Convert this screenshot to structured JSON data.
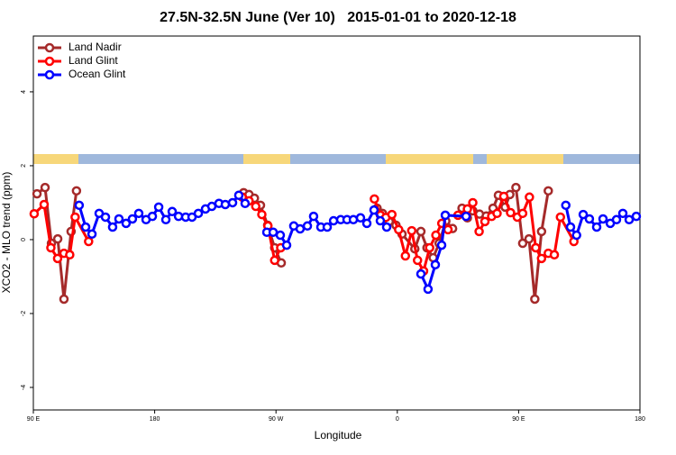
{
  "chart_data": {
    "type": "line",
    "title": "27.5N-32.5N June (Ver 10)   2015-01-01 to 2020-12-18",
    "xlabel": "Longitude",
    "ylabel": "XCO2 - MLO trend (ppm)",
    "xlim": [
      90,
      540
    ],
    "ylim": [
      -4.61,
      5.51
    ],
    "xticks": [
      {
        "value": 90,
        "label": "90 E"
      },
      180,
      {
        "value": 270,
        "label": "90 W"
      },
      {
        "value": 360,
        "label": "0"
      },
      {
        "value": 450,
        "label": "90 E"
      },
      {
        "value": 540,
        "label": "180"
      }
    ],
    "yticks": [
      -4,
      -2,
      0,
      2,
      4
    ],
    "legend": "top-left",
    "series": [
      {
        "name": "Land Nadir",
        "color": "#a52a2a",
        "x": [
          92.7,
          98.7,
          103.4,
          108.1,
          112.7,
          118,
          122,
          180,
          246,
          250,
          254,
          258.5,
          263.8,
          269,
          273.9,
          300,
          345,
          349,
          354,
          359,
          363.5,
          373,
          377.5,
          382,
          386.6,
          391,
          396,
          401,
          404,
          408,
          412,
          416,
          421,
          426,
          431,
          435,
          440,
          443.5,
          448,
          453,
          457.7,
          462,
          467,
          472
        ],
        "values": [
          1.24,
          1.41,
          -0.1,
          0.02,
          -1.61,
          0.22,
          1.32,
          null,
          1.27,
          1.22,
          1.12,
          0.93,
          0.39,
          -0.22,
          -0.63,
          null,
          0.85,
          0.71,
          0.49,
          0.39,
          0.15,
          -0.25,
          0.22,
          -0.22,
          -0.49,
          -0.1,
          0.5,
          0.3,
          null,
          0.85,
          0.59,
          0.78,
          0.69,
          0.64,
          0.85,
          1.2,
          0.88,
          1.22,
          1.41,
          -0.1,
          0.02,
          -1.61,
          0.22,
          1.32
        ]
      },
      {
        "name": "Land Glint",
        "color": "#ff0000",
        "x": [
          90.6,
          98,
          103,
          108,
          112.7,
          117,
          121,
          131,
          200,
          245,
          250,
          255,
          259.5,
          264,
          269,
          273.5,
          300,
          343,
          347.5,
          351.5,
          356,
          361,
          366,
          370.7,
          375,
          379.5,
          384,
          388.6,
          393,
          397.6,
          401,
          405,
          412,
          416,
          420.7,
          425,
          430,
          434,
          439,
          444,
          449,
          453,
          458,
          462.7,
          467,
          472,
          476.5,
          481,
          491
        ],
        "values": [
          0.7,
          0.95,
          -0.22,
          -0.51,
          -0.37,
          -0.41,
          0.61,
          -0.05,
          null,
          1.15,
          1.05,
          0.9,
          0.68,
          0.37,
          -0.56,
          -0.22,
          null,
          1.1,
          0.66,
          0.6,
          0.68,
          0.27,
          -0.44,
          0.24,
          -0.56,
          -0.85,
          -0.22,
          0.12,
          0.44,
          0.27,
          null,
          0.66,
          0.83,
          1.0,
          0.22,
          0.49,
          0.63,
          0.71,
          1.17,
          0.73,
          0.61,
          0.71,
          1.15,
          -0.22,
          -0.51,
          -0.37,
          -0.41,
          0.61,
          -0.05
        ]
      },
      {
        "name": "Ocean Glint",
        "color": "#0000ff",
        "x": [
          124,
          128.8,
          133.5,
          138.8,
          143.5,
          148.8,
          153.5,
          158.8,
          163.5,
          168.2,
          173.6,
          178.3,
          183,
          188.3,
          193,
          197.7,
          203,
          207.7,
          212.4,
          217.7,
          222.4,
          227.7,
          232.4,
          237.8,
          242.4,
          247.1,
          255,
          263.2,
          267.9,
          273.2,
          277.9,
          283.2,
          287.9,
          293.3,
          297.9,
          303.3,
          308,
          312.7,
          318,
          322.7,
          327.4,
          332.7,
          337.4,
          342.7,
          347.4,
          352.1,
          360,
          377.5,
          382.8,
          388.2,
          392.9,
          395.6,
          411,
          450,
          485,
          488.5,
          493,
          497.9,
          502.5,
          507.9,
          512.6,
          518,
          522.6,
          527.3,
          532,
          537.3
        ],
        "values": [
          0.93,
          0.34,
          0.15,
          0.71,
          0.61,
          0.34,
          0.56,
          0.44,
          0.56,
          0.71,
          0.54,
          0.63,
          0.88,
          0.54,
          0.76,
          0.63,
          0.61,
          0.61,
          0.71,
          0.83,
          0.9,
          0.98,
          0.95,
          1.0,
          1.2,
          0.98,
          null,
          0.2,
          0.2,
          0.12,
          -0.15,
          0.37,
          0.29,
          0.37,
          0.63,
          0.34,
          0.34,
          0.51,
          0.54,
          0.54,
          0.54,
          0.59,
          0.44,
          0.8,
          0.51,
          0.34,
          null,
          -0.93,
          -1.34,
          -0.68,
          -0.15,
          0.66,
          0.63,
          null,
          0.93,
          0.34,
          0.12,
          0.68,
          0.56,
          0.34,
          0.56,
          0.44,
          0.54,
          0.71,
          0.54,
          0.63
        ]
      }
    ]
  }
}
